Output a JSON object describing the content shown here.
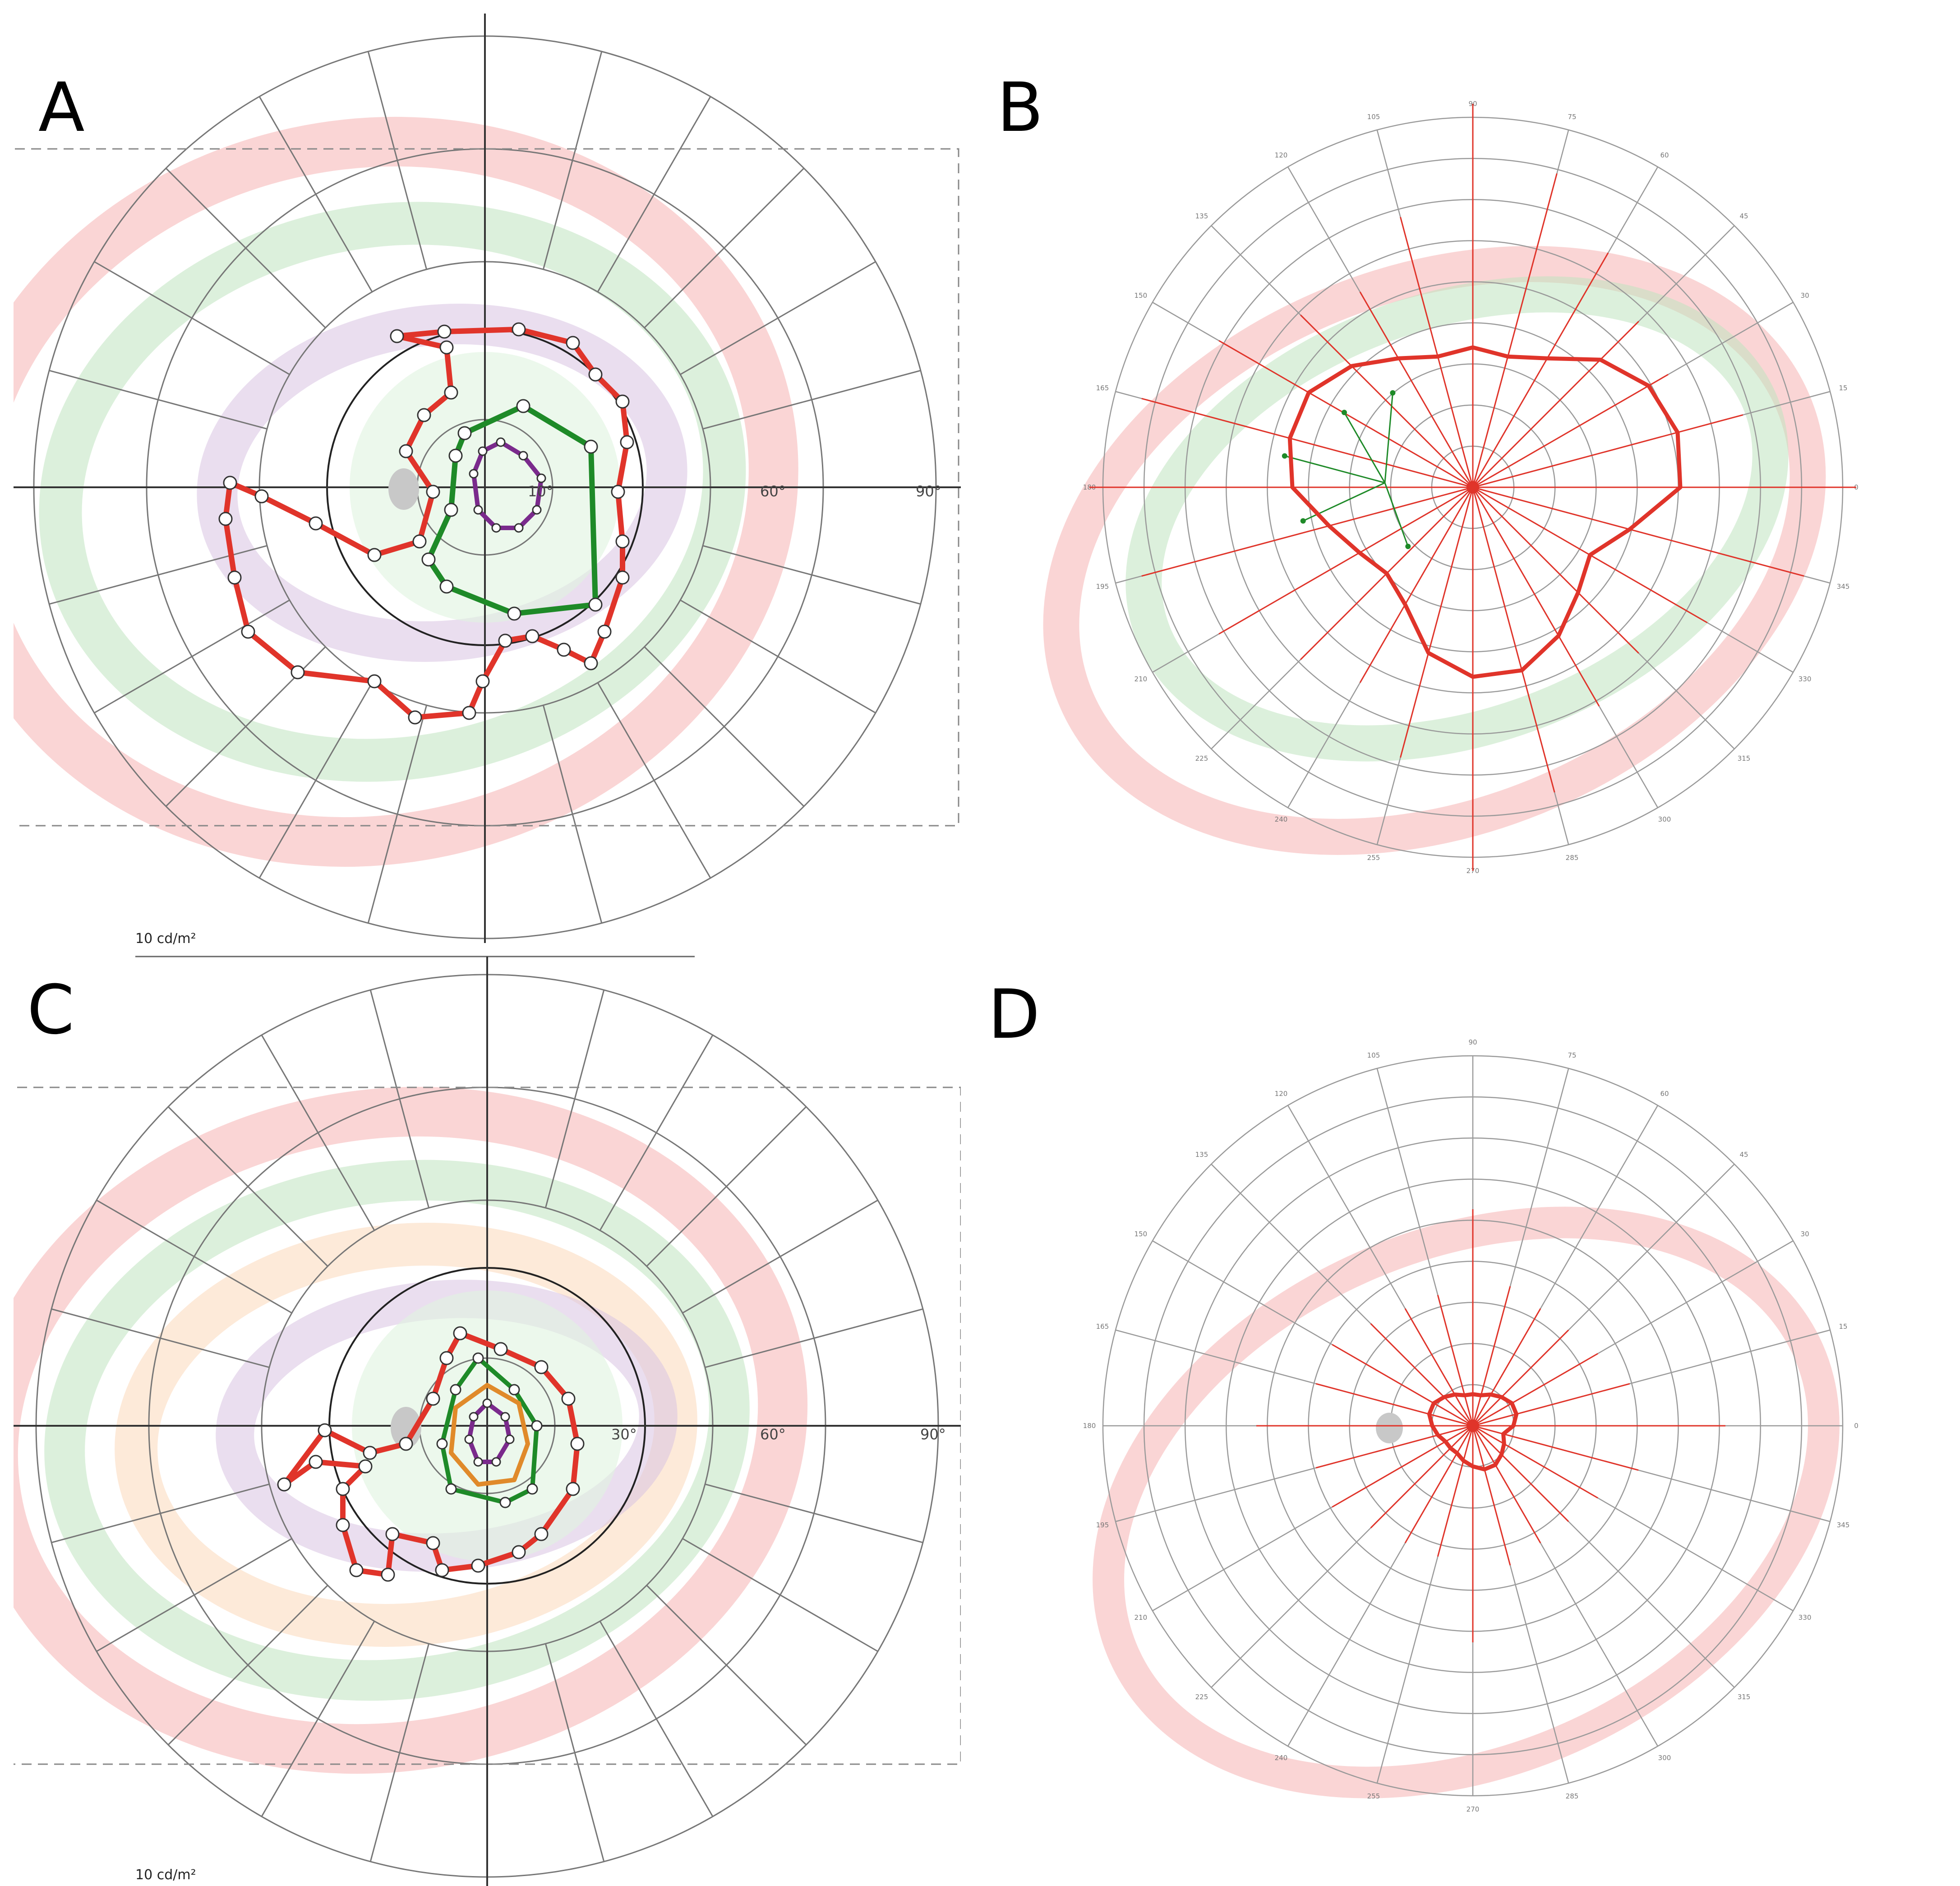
{
  "panels": [
    {
      "letter": "A",
      "type": "kinetic",
      "ring_labels": [
        "10°",
        "60°",
        "90°"
      ],
      "scale_label": "10 cd/m²",
      "bands": [
        "#f6b3b3",
        "#bfe3c0",
        "#d9c2e2"
      ],
      "isopters": [
        "#e0342a",
        "#1e8a28",
        "#7a2a8c"
      ]
    },
    {
      "letter": "B",
      "type": "static",
      "angle_labels": [
        "120",
        "105",
        "90",
        "75",
        "60",
        "45",
        "30",
        "15",
        "0",
        "345",
        "330",
        "315",
        "300",
        "285",
        "270",
        "255",
        "240",
        "225",
        "210",
        "195",
        "180",
        "165",
        "150",
        "135"
      ],
      "bands": [
        "#f6b3b3",
        "#bfe3c0"
      ],
      "isopters": [
        "#e0342a"
      ]
    },
    {
      "letter": "C",
      "type": "kinetic",
      "ring_labels": [
        "30°",
        "60°",
        "90°"
      ],
      "scale_label": "10 cd/m²",
      "bands": [
        "#f6b3b3",
        "#bfe3c0",
        "#fbd9b9",
        "#d9c2e2"
      ],
      "isopters": [
        "#e0342a",
        "#1e8a28",
        "#e08a2a",
        "#7a2a8c"
      ]
    },
    {
      "letter": "D",
      "type": "static",
      "angle_labels": [
        "120",
        "105",
        "90",
        "75",
        "60",
        "45",
        "30",
        "15",
        "0",
        "345",
        "330",
        "315",
        "300",
        "285",
        "270",
        "255",
        "240",
        "225",
        "210",
        "195",
        "180",
        "165",
        "150",
        "135"
      ],
      "bands": [
        "#f6b3b3"
      ],
      "isopters": [
        "#e0342a"
      ]
    }
  ],
  "colors": {
    "grid": "#777777",
    "axis": "#333333",
    "red": "#e0342a",
    "green": "#1e8a28",
    "purple": "#7a2a8c",
    "orange": "#e08a2a",
    "blind_spot": "#c8c8c8"
  }
}
